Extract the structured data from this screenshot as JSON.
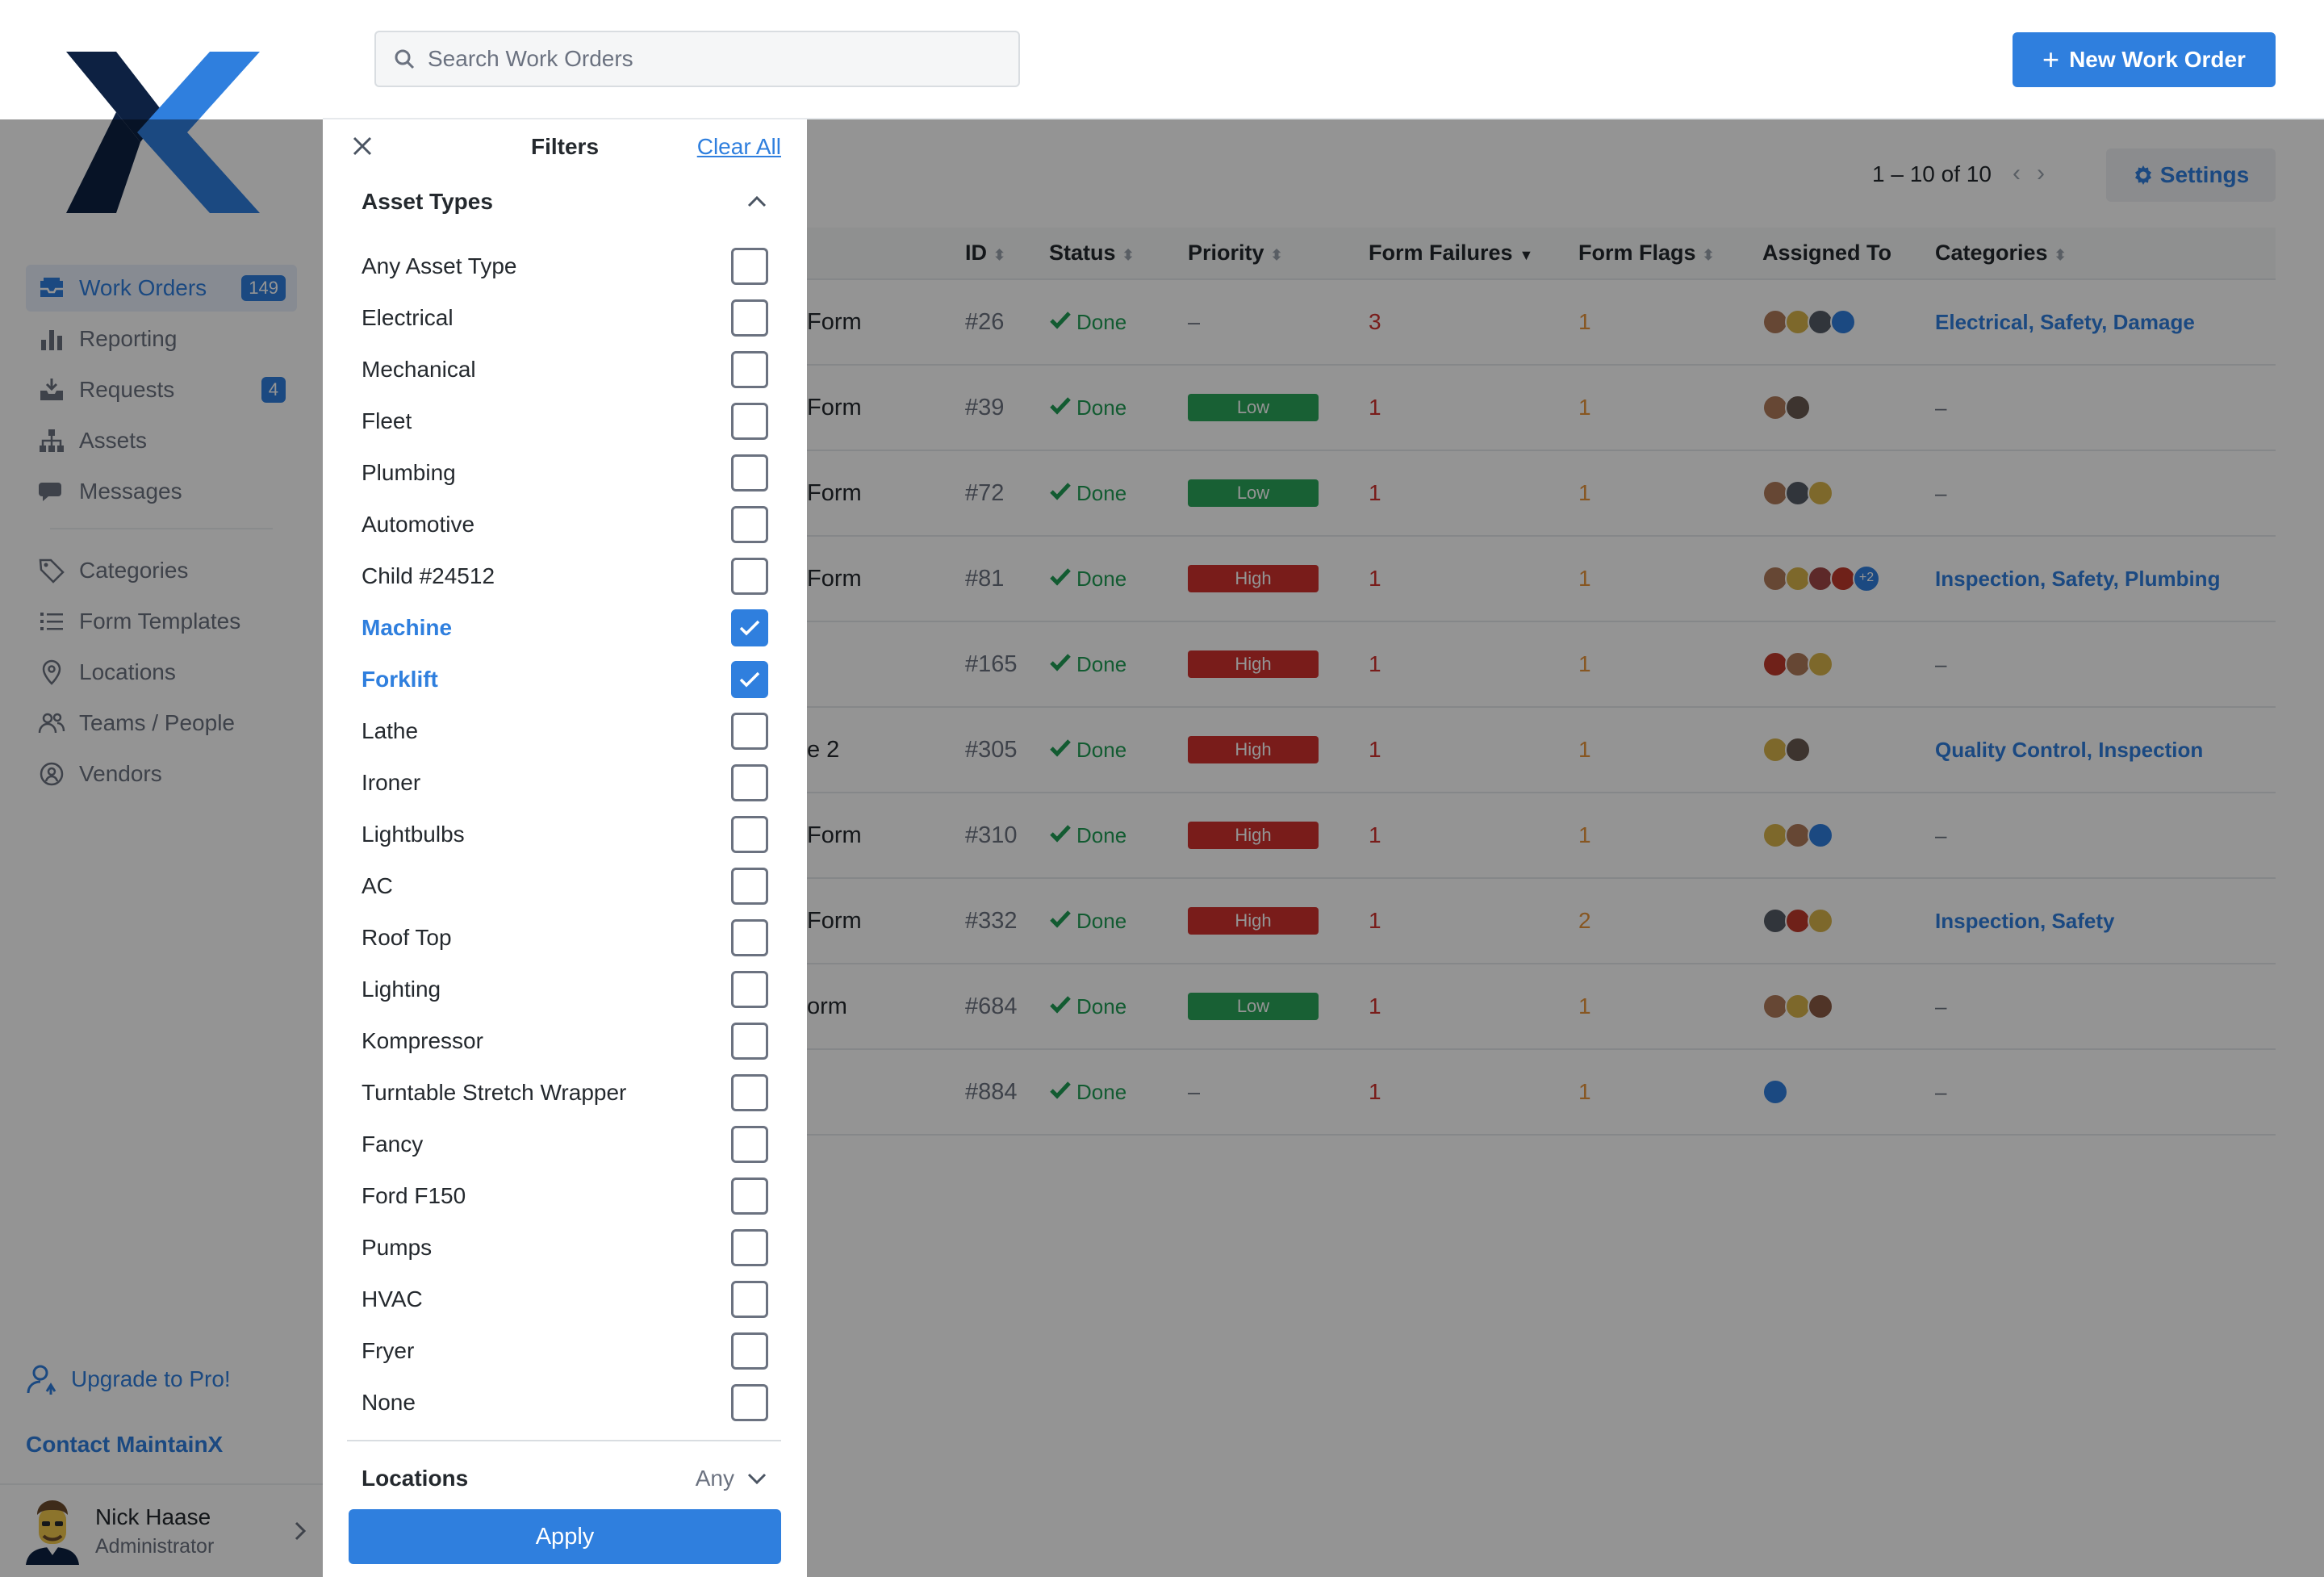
{
  "app": {
    "brand_colors": {
      "dark": "#0d2142",
      "accent": "#2f7fde"
    }
  },
  "sidebar": {
    "items": [
      {
        "label": "Work Orders",
        "icon": "inbox-icon",
        "badge": "149",
        "active": true
      },
      {
        "label": "Reporting",
        "icon": "bar-chart-icon"
      },
      {
        "label": "Requests",
        "icon": "tray-icon",
        "badge": "4"
      },
      {
        "label": "Assets",
        "icon": "hierarchy-icon"
      },
      {
        "label": "Messages",
        "icon": "chat-icon"
      }
    ],
    "secondary_items": [
      {
        "label": "Categories",
        "icon": "tag-icon"
      },
      {
        "label": "Form Templates",
        "icon": "list-icon"
      },
      {
        "label": "Locations",
        "icon": "map-pin-icon"
      },
      {
        "label": "Teams / People",
        "icon": "people-icon"
      },
      {
        "label": "Vendors",
        "icon": "vendors-icon"
      }
    ],
    "upgrade": "Upgrade to Pro!",
    "contact": "Contact MaintainX",
    "user": {
      "name": "Nick Haase",
      "role": "Administrator"
    }
  },
  "topbar": {
    "search_placeholder": "Search Work Orders",
    "new_button": "New Work Order",
    "new_button_plus": "+"
  },
  "list": {
    "pager": "1 – 10 of 10",
    "settings": "Settings",
    "columns": {
      "id": "ID",
      "status": "Status",
      "priority": "Priority",
      "form_failures": "Form Failures",
      "form_flags": "Form Flags",
      "assigned": "Assigned To",
      "categories": "Categories"
    },
    "rows": [
      {
        "title": "Form",
        "id": "#26",
        "status": "Done",
        "priority": "–",
        "priority_level": "none",
        "form_failures": "3",
        "form_flags": "1",
        "avatars": [
          "#b07a5a",
          "#d8b44a",
          "#555c66",
          "#2f7fde"
        ],
        "more": "",
        "categories": "Electrical, Safety, Damage"
      },
      {
        "title": "Form",
        "id": "#39",
        "status": "Done",
        "priority": "Low",
        "priority_level": "low",
        "form_failures": "1",
        "form_flags": "1",
        "avatars": [
          "#b07a5a",
          "#6a5a52"
        ],
        "more": "",
        "categories": "–"
      },
      {
        "title": "Form",
        "id": "#72",
        "status": "Done",
        "priority": "Low",
        "priority_level": "low",
        "form_failures": "1",
        "form_flags": "1",
        "avatars": [
          "#b07a5a",
          "#555c66",
          "#d8b44a"
        ],
        "more": "",
        "categories": "–"
      },
      {
        "title": "Form",
        "id": "#81",
        "status": "Done",
        "priority": "High",
        "priority_level": "high",
        "form_failures": "1",
        "form_flags": "1",
        "avatars": [
          "#b07a5a",
          "#d8b44a",
          "#a04848",
          "#c0392b"
        ],
        "more": "+2",
        "categories": "Inspection, Safety, Plumbing"
      },
      {
        "title": "",
        "id": "#165",
        "status": "Done",
        "priority": "High",
        "priority_level": "high",
        "form_failures": "1",
        "form_flags": "1",
        "avatars": [
          "#c0392b",
          "#b07a5a",
          "#d8b44a"
        ],
        "more": "",
        "categories": "–"
      },
      {
        "title": "e 2",
        "id": "#305",
        "status": "Done",
        "priority": "High",
        "priority_level": "high",
        "form_failures": "1",
        "form_flags": "1",
        "avatars": [
          "#d8b44a",
          "#6a5a52"
        ],
        "more": "",
        "categories": "Quality Control, Inspection"
      },
      {
        "title": "Form",
        "id": "#310",
        "status": "Done",
        "priority": "High",
        "priority_level": "high",
        "form_failures": "1",
        "form_flags": "1",
        "avatars": [
          "#d8b44a",
          "#b07a5a",
          "#2f7fde"
        ],
        "more": "",
        "categories": "–"
      },
      {
        "title": "Form",
        "id": "#332",
        "status": "Done",
        "priority": "High",
        "priority_level": "high",
        "form_failures": "1",
        "form_flags": "2",
        "avatars": [
          "#555c66",
          "#c0392b",
          "#d8b44a"
        ],
        "more": "",
        "categories": "Inspection, Safety"
      },
      {
        "title": "orm",
        "id": "#684",
        "status": "Done",
        "priority": "Low",
        "priority_level": "low",
        "form_failures": "1",
        "form_flags": "1",
        "avatars": [
          "#b07a5a",
          "#d8b44a",
          "#8a5a44"
        ],
        "more": "",
        "categories": "–"
      },
      {
        "title": "",
        "id": "#884",
        "status": "Done",
        "priority": "–",
        "priority_level": "none",
        "form_failures": "1",
        "form_flags": "1",
        "avatars": [
          "#2f7fde"
        ],
        "more": "",
        "categories": "–"
      }
    ]
  },
  "filters": {
    "title": "Filters",
    "clear_all": "Clear All",
    "asset_types_title": "Asset Types",
    "asset_types": [
      {
        "label": "Any Asset Type",
        "checked": false
      },
      {
        "label": "Electrical",
        "checked": false
      },
      {
        "label": "Mechanical",
        "checked": false
      },
      {
        "label": "Fleet",
        "checked": false
      },
      {
        "label": "Plumbing",
        "checked": false
      },
      {
        "label": "Automotive",
        "checked": false
      },
      {
        "label": "Child #24512",
        "checked": false
      },
      {
        "label": "Machine",
        "checked": true
      },
      {
        "label": "Forklift",
        "checked": true
      },
      {
        "label": "Lathe",
        "checked": false
      },
      {
        "label": "Ironer",
        "checked": false
      },
      {
        "label": "Lightbulbs",
        "checked": false
      },
      {
        "label": "AC",
        "checked": false
      },
      {
        "label": "Roof Top",
        "checked": false
      },
      {
        "label": "Lighting",
        "checked": false
      },
      {
        "label": "Kompressor",
        "checked": false
      },
      {
        "label": "Turntable Stretch Wrapper",
        "checked": false
      },
      {
        "label": "Fancy",
        "checked": false
      },
      {
        "label": "Ford F150",
        "checked": false
      },
      {
        "label": "Pumps",
        "checked": false
      },
      {
        "label": "HVAC",
        "checked": false
      },
      {
        "label": "Fryer",
        "checked": false
      },
      {
        "label": "None",
        "checked": false
      }
    ],
    "locations_title": "Locations",
    "locations_value": "Any",
    "apply": "Apply"
  }
}
